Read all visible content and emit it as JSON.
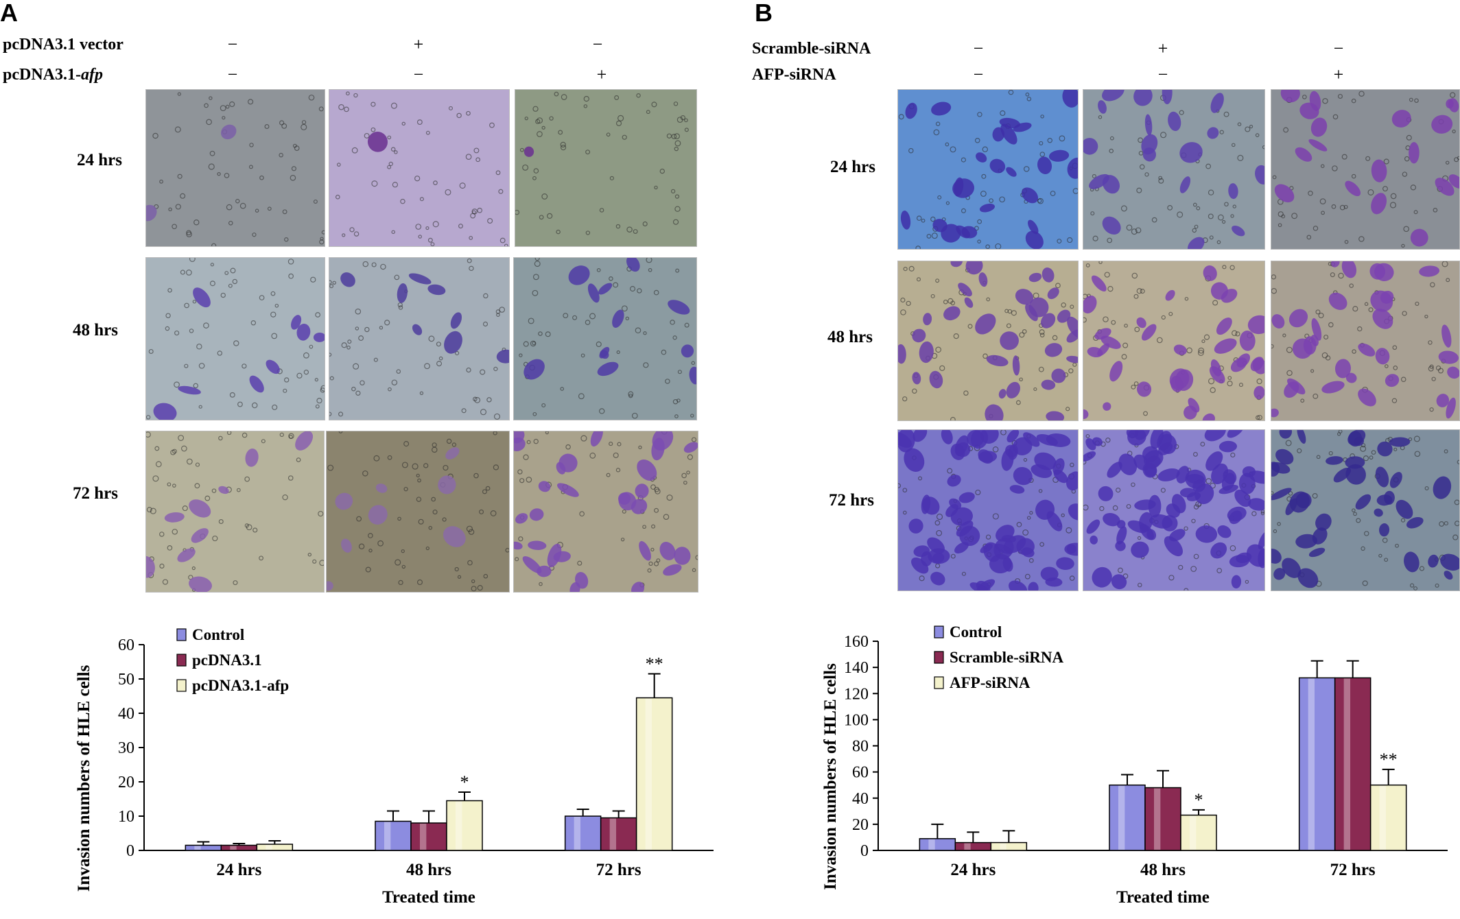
{
  "panels": [
    {
      "letter": "A",
      "conditions": [
        {
          "label": "pcDNA3.1 vector",
          "signs": [
            "−",
            "+",
            "−"
          ]
        },
        {
          "label_prefix": "pcDNA3.1-",
          "label_italic": "afp",
          "signs": [
            "−",
            "−",
            "+"
          ]
        }
      ],
      "rows": [
        "24 hrs",
        "48 hrs",
        "72 hrs"
      ],
      "micrographs": [
        {
          "bg": "#8f9499",
          "cell": "#7b5fa8",
          "density": 2
        },
        {
          "bg": "#b7a8cf",
          "cell": "#6a2f8f",
          "density": 1
        },
        {
          "bg": "#8e9a84",
          "cell": "#6a2f8f",
          "density": 1
        },
        {
          "bg": "#a8b4bc",
          "cell": "#5a3fae",
          "density": 8
        },
        {
          "bg": "#a4aeb8",
          "cell": "#4e3c9c",
          "density": 8
        },
        {
          "bg": "#8b9ba1",
          "cell": "#4f3ba6",
          "density": 12
        },
        {
          "bg": "#b6b39c",
          "cell": "#8a5fb0",
          "density": 9
        },
        {
          "bg": "#8b846e",
          "cell": "#8a6aa8",
          "density": 8
        },
        {
          "bg": "#a9a28c",
          "cell": "#7b4cb2",
          "density": 30
        }
      ],
      "chart_data": {
        "type": "bar",
        "categories": [
          "24 hrs",
          "48 hrs",
          "72 hrs"
        ],
        "series": [
          {
            "name": "Control",
            "color": "#8c8ce0",
            "values": [
              1.5,
              8.5,
              10
            ],
            "errors": [
              1,
              3,
              2
            ],
            "sig": [
              "",
              "",
              ""
            ]
          },
          {
            "name": "pcDNA3.1",
            "color": "#8a2a52",
            "values": [
              1.5,
              8,
              9.5
            ],
            "errors": [
              0.5,
              3.5,
              2
            ],
            "sig": [
              "",
              "",
              ""
            ]
          },
          {
            "name": "pcDNA3.1-afp",
            "color": "#f4f2cc",
            "values": [
              1.8,
              14.5,
              44.5
            ],
            "errors": [
              1,
              2.5,
              7
            ],
            "sig": [
              "",
              "*",
              "**"
            ]
          }
        ],
        "ylabel": "Invasion numbers of HLE cells",
        "xlabel": "Treated time",
        "ylim": [
          0,
          60
        ],
        "yticks": [
          "0",
          "10",
          "20",
          "30",
          "40",
          "50",
          "60"
        ],
        "legend_position": "top-left",
        "grid": false
      }
    },
    {
      "letter": "B",
      "conditions": [
        {
          "label": "Scramble-siRNA",
          "signs": [
            "−",
            "+",
            "−"
          ]
        },
        {
          "label": "AFP-siRNA",
          "signs": [
            "−",
            "−",
            "+"
          ]
        }
      ],
      "rows": [
        "24 hrs",
        "48 hrs",
        "72 hrs"
      ],
      "micrographs": [
        {
          "bg": "#5f8fd0",
          "cell": "#3e2fa8",
          "density": 24
        },
        {
          "bg": "#8d9aa4",
          "cell": "#5a3fae",
          "density": 20
        },
        {
          "bg": "#8a8f96",
          "cell": "#7b3fae",
          "density": 18
        },
        {
          "bg": "#b7ae92",
          "cell": "#6a3fa8",
          "density": 34
        },
        {
          "bg": "#b8ae97",
          "cell": "#7b42b0",
          "density": 34
        },
        {
          "bg": "#a8a093",
          "cell": "#7b42b0",
          "density": 30
        },
        {
          "bg": "#7a76c8",
          "cell": "#4a32b0",
          "density": 70
        },
        {
          "bg": "#8a82cc",
          "cell": "#4a32b0",
          "density": 72
        },
        {
          "bg": "#7f8f9e",
          "cell": "#352a8e",
          "density": 40
        }
      ],
      "chart_data": {
        "type": "bar",
        "categories": [
          "24 hrs",
          "48 hrs",
          "72 hrs"
        ],
        "series": [
          {
            "name": "Control",
            "color": "#8c8ce0",
            "values": [
              9,
              50,
              132
            ],
            "errors": [
              11,
              8,
              13
            ],
            "sig": [
              "",
              "",
              ""
            ]
          },
          {
            "name": "Scramble-siRNA",
            "color": "#8a2a52",
            "values": [
              6,
              48,
              132
            ],
            "errors": [
              8,
              13,
              13
            ],
            "sig": [
              "",
              "",
              ""
            ]
          },
          {
            "name": "AFP-siRNA",
            "color": "#f4f2cc",
            "values": [
              6,
              27,
              50
            ],
            "errors": [
              9,
              4,
              12
            ],
            "sig": [
              "",
              "*",
              "**"
            ]
          }
        ],
        "ylabel": "Invasion numbers of HLE cells",
        "xlabel": "Treated time",
        "ylim": [
          0,
          160
        ],
        "yticks": [
          "0",
          "20",
          "40",
          "60",
          "80",
          "100",
          "120",
          "140",
          "160"
        ],
        "legend_position": "top-left",
        "grid": false
      }
    }
  ]
}
